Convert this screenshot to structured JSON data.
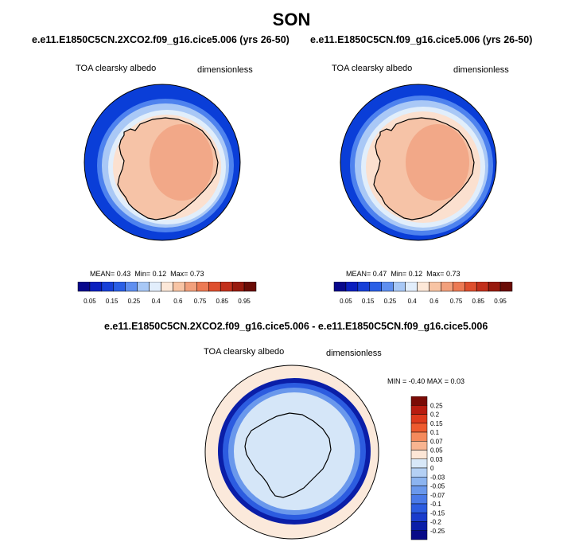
{
  "title": "SON",
  "panels": [
    {
      "case_title": "e.e11.E1850C5CN.2XCO2.f09_g16.cice5.006 (yrs 26-50)",
      "variable": "TOA clearsky albedo",
      "units": "dimensionless",
      "stats": {
        "mean_label": "MEAN=",
        "mean": "0.43",
        "min_label": "Min=",
        "min": "0.12",
        "max_label": "Max=",
        "max": "0.73"
      }
    },
    {
      "case_title": "e.e11.E1850C5CN.f09_g16.cice5.006 (yrs 26-50)",
      "variable": "TOA clearsky albedo",
      "units": "dimensionless",
      "stats": {
        "mean_label": "MEAN=",
        "mean": "0.47",
        "min_label": "Min=",
        "min": "0.12",
        "max_label": "Max=",
        "max": "0.73"
      }
    }
  ],
  "abs_colorbar": {
    "colors": [
      "#08088c",
      "#0a1fbf",
      "#1740d8",
      "#2a5fe6",
      "#5f8ff0",
      "#a8c8f6",
      "#e2eefc",
      "#fde8d8",
      "#f8c4a4",
      "#f2a07c",
      "#ec7a54",
      "#de4f2e",
      "#c2301c",
      "#981a0e",
      "#6a0c06"
    ],
    "tick_labels": [
      "0.05",
      "0.15",
      "0.25",
      "0.4",
      "0.6",
      "0.75",
      "0.85",
      "0.95"
    ]
  },
  "diff_panel": {
    "case_title": "e.e11.E1850C5CN.2XCO2.f09_g16.cice5.006 - e.e11.E1850C5CN.f09_g16.cice5.006",
    "variable": "TOA clearsky albedo",
    "units": "dimensionless",
    "minmax": "MIN =  -0.40 MAX =   0.03",
    "colorbar": {
      "colors": [
        "#7a0b06",
        "#b81c10",
        "#de3a1c",
        "#ee5a2e",
        "#f58a5c",
        "#f8b490",
        "#fde6d6",
        "#d8e8f8",
        "#b4d0f4",
        "#8cb4f0",
        "#6a98ec",
        "#4a7ae8",
        "#2c5ce0",
        "#1a3ccc",
        "#0a1ea8",
        "#080a88"
      ],
      "labels": [
        "0.25",
        "0.2",
        "0.15",
        "0.1",
        "0.07",
        "0.05",
        "0.03",
        "0",
        "-0.03",
        "-0.05",
        "-0.07",
        "-0.1",
        "-0.15",
        "-0.2",
        "-0.25"
      ]
    }
  },
  "map_colors": {
    "ocean_outer": "#0a3ed8",
    "ring1": "#4e82ee",
    "ring2": "#a9c8f6",
    "ring3": "#e1eefb",
    "land_edge": "#fbe0cf",
    "land_mid": "#f6c3a7",
    "land_core": "#f2a888",
    "diff_bg": "#fbe9db",
    "diff_band_dark": "#0a1ea8",
    "diff_band_mid": "#2c5ce0",
    "diff_band_light": "#6a98ec",
    "diff_land": "#d5e6f8"
  }
}
